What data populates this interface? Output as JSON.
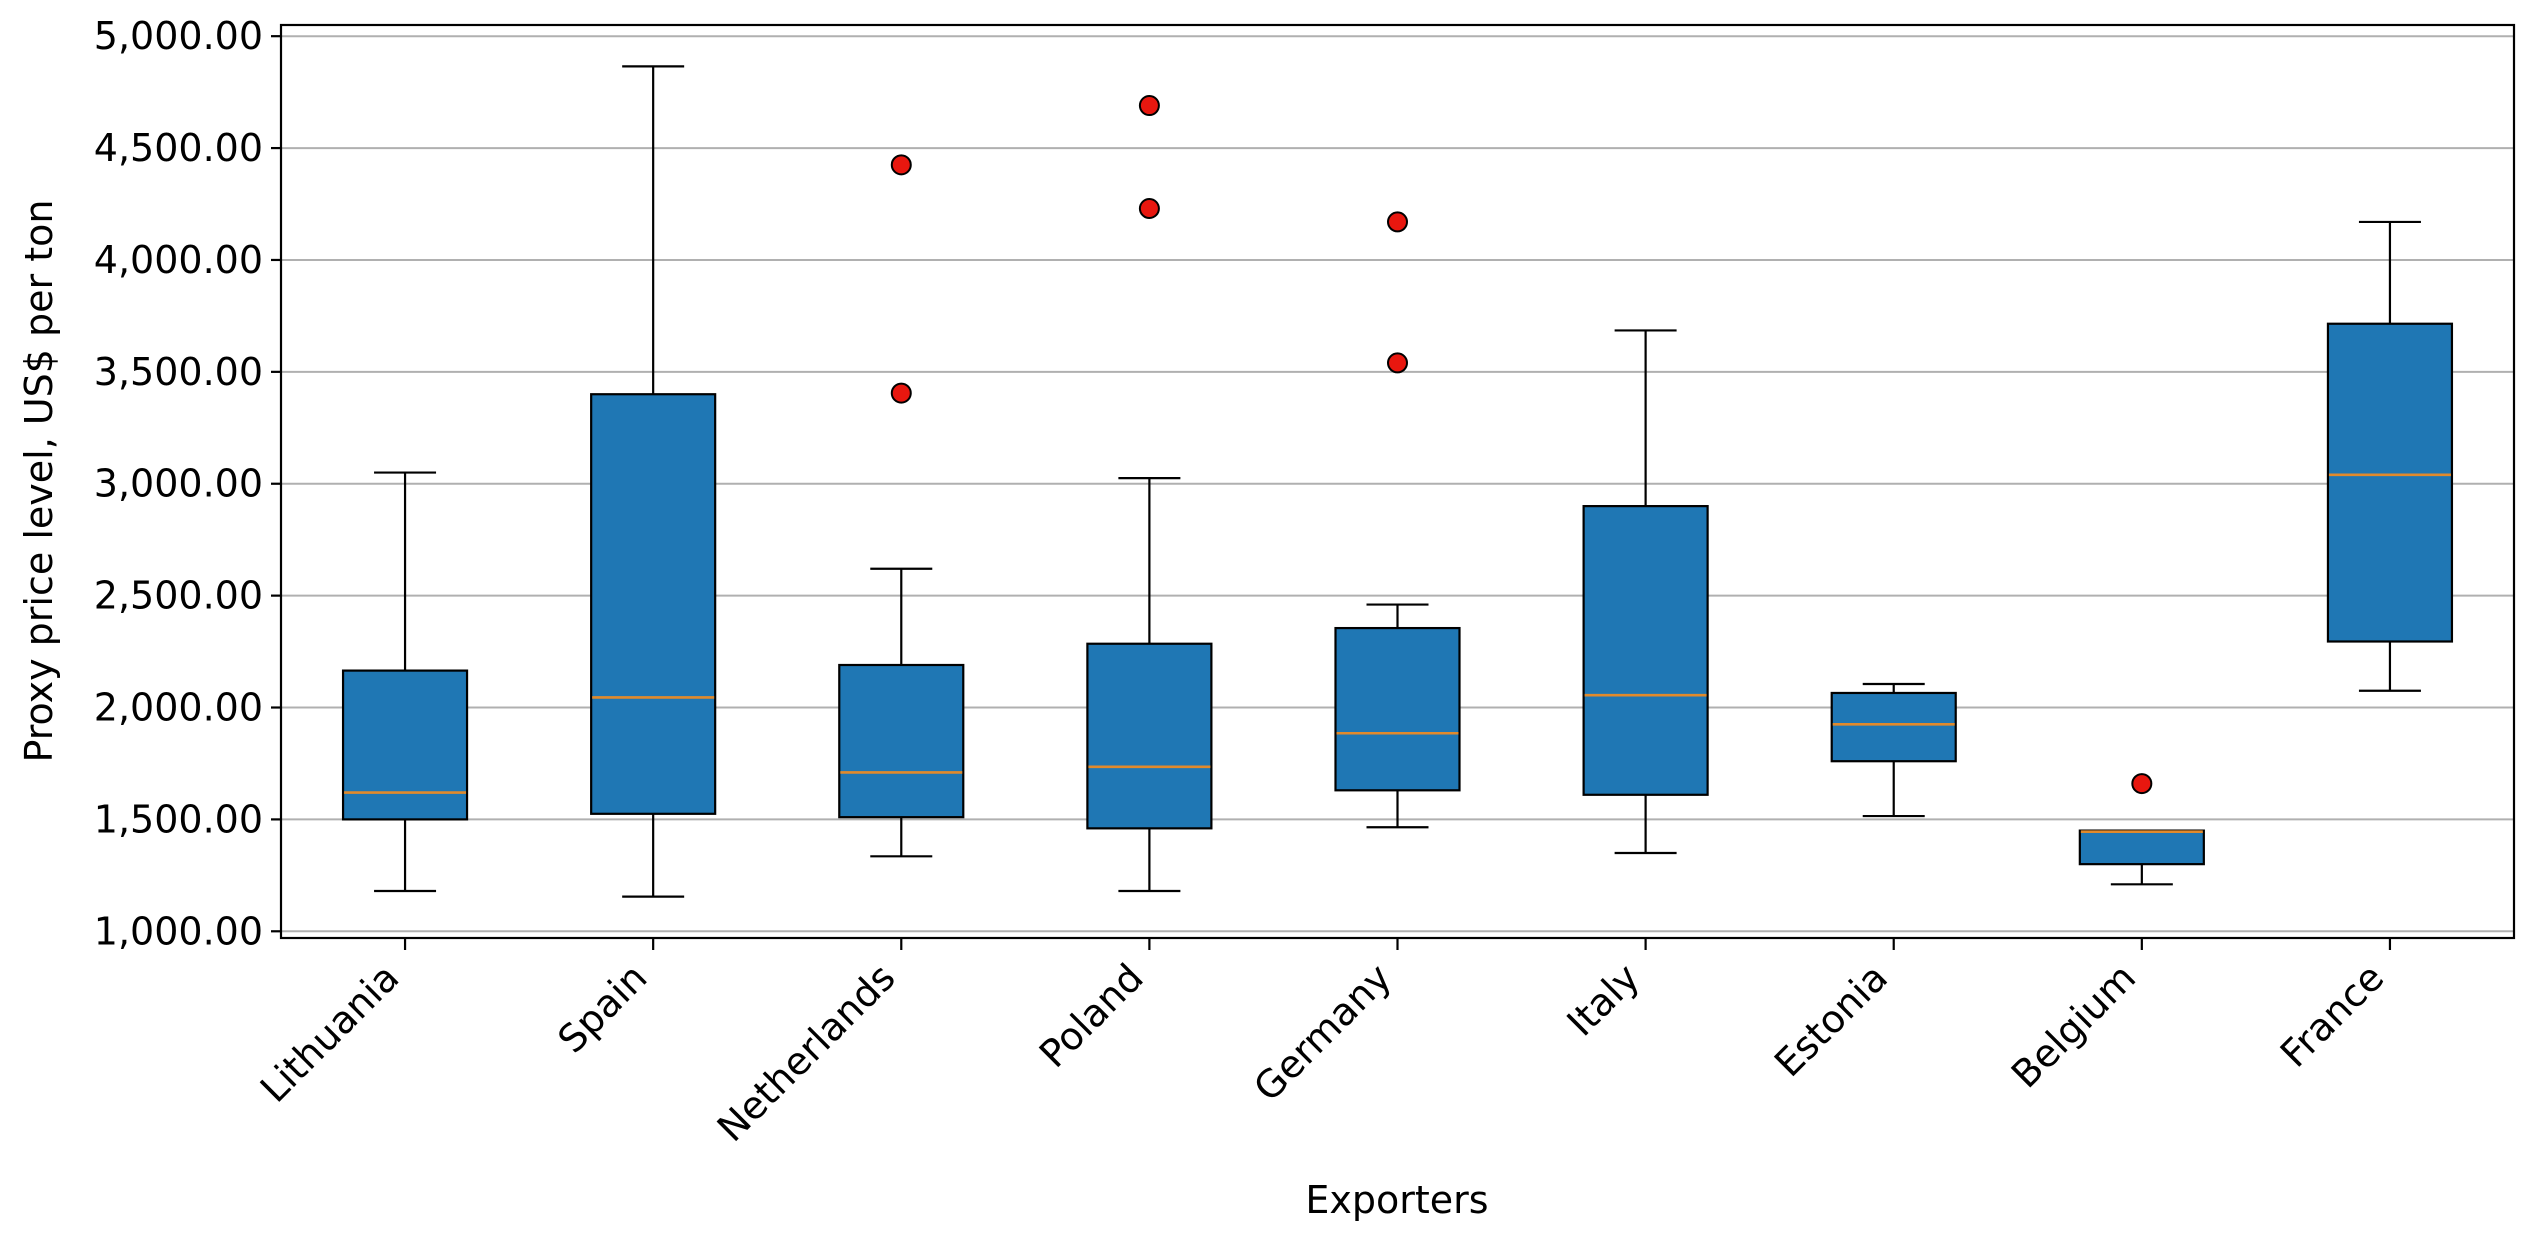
{
  "chart_data": {
    "type": "box",
    "xlabel": "Exporters",
    "ylabel": "Proxy price level, US$ per ton",
    "ylim": [
      970,
      5050
    ],
    "yticks": [
      1000,
      1500,
      2000,
      2500,
      3000,
      3500,
      4000,
      4500,
      5000
    ],
    "ytick_labels": [
      "1,000.00",
      "1,500.00",
      "2,000.00",
      "2,500.00",
      "3,000.00",
      "3,500.00",
      "4,000.00",
      "4,500.00",
      "5,000.00"
    ],
    "grid": "horizontal",
    "colors": {
      "box_fill": "#1f77b4",
      "median": "#e08a2c",
      "outlier": "#e8170f",
      "grid": "#b0b0b0"
    },
    "categories": [
      "Lithuania",
      "Spain",
      "Netherlands",
      "Poland",
      "Germany",
      "Italy",
      "Estonia",
      "Belgium",
      "France"
    ],
    "boxes": [
      {
        "category": "Lithuania",
        "whisker_low": 1180,
        "q1": 1500,
        "median": 1620,
        "q3": 2165,
        "whisker_high": 3050,
        "outliers": []
      },
      {
        "category": "Spain",
        "whisker_low": 1155,
        "q1": 1525,
        "median": 2045,
        "q3": 3400,
        "whisker_high": 4865,
        "outliers": []
      },
      {
        "category": "Netherlands",
        "whisker_low": 1335,
        "q1": 1510,
        "median": 1710,
        "q3": 2190,
        "whisker_high": 2620,
        "outliers": [
          4425,
          3405
        ]
      },
      {
        "category": "Poland",
        "whisker_low": 1180,
        "q1": 1460,
        "median": 1735,
        "q3": 2285,
        "whisker_high": 3025,
        "outliers": [
          4690,
          4230
        ]
      },
      {
        "category": "Germany",
        "whisker_low": 1465,
        "q1": 1630,
        "median": 1885,
        "q3": 2355,
        "whisker_high": 2460,
        "outliers": [
          4170,
          3540
        ]
      },
      {
        "category": "Italy",
        "whisker_low": 1350,
        "q1": 1610,
        "median": 2055,
        "q3": 2900,
        "whisker_high": 3685,
        "outliers": []
      },
      {
        "category": "Estonia",
        "whisker_low": 1515,
        "q1": 1760,
        "median": 1925,
        "q3": 2065,
        "whisker_high": 2105,
        "outliers": []
      },
      {
        "category": "Belgium",
        "whisker_low": 1210,
        "q1": 1300,
        "median": 1445,
        "q3": 1450,
        "whisker_high": 1450,
        "outliers": [
          1660
        ]
      },
      {
        "category": "France",
        "whisker_low": 2075,
        "q1": 2295,
        "median": 3040,
        "q3": 3715,
        "whisker_high": 4170,
        "outliers": []
      }
    ]
  }
}
